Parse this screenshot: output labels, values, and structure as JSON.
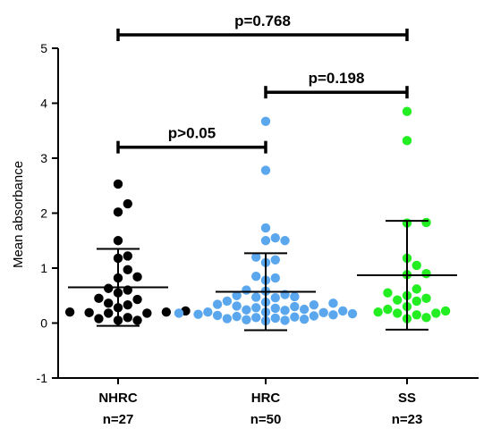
{
  "chart_data": {
    "type": "scatter",
    "title": "",
    "xlabel": "",
    "ylabel": "Mean absorbance",
    "ylim": [
      -1,
      5
    ],
    "yticks": [
      -1,
      0,
      1,
      2,
      3,
      4,
      5
    ],
    "grid": false,
    "categories": [
      {
        "name": "NHRC",
        "n_label": "n=27"
      },
      {
        "name": "HRC",
        "n_label": "n=50"
      },
      {
        "name": "SS",
        "n_label": "n=23"
      }
    ],
    "series": [
      {
        "category": "NHRC",
        "color": "#000000",
        "mean": 0.65,
        "sd_upper": 1.35,
        "sd_lower": -0.05,
        "values": [
          2.53,
          2.17,
          2.02,
          1.5,
          1.22,
          1.18,
          0.97,
          0.84,
          0.82,
          0.63,
          0.6,
          0.55,
          0.45,
          0.43,
          0.36,
          0.33,
          0.28,
          0.22,
          0.2,
          0.2,
          0.19,
          0.18,
          0.18,
          0.1,
          0.08,
          0.05,
          0.05
        ]
      },
      {
        "category": "HRC",
        "color": "#5aa7ee",
        "mean": 0.57,
        "sd_upper": 1.27,
        "sd_lower": -0.13,
        "values": [
          3.67,
          2.78,
          1.73,
          1.55,
          1.5,
          1.5,
          1.2,
          1.15,
          1.1,
          0.85,
          0.82,
          0.78,
          0.6,
          0.58,
          0.52,
          0.5,
          0.48,
          0.47,
          0.46,
          0.4,
          0.38,
          0.36,
          0.34,
          0.33,
          0.31,
          0.3,
          0.28,
          0.27,
          0.25,
          0.24,
          0.23,
          0.22,
          0.2,
          0.2,
          0.19,
          0.18,
          0.17,
          0.16,
          0.15,
          0.14,
          0.13,
          0.12,
          0.11,
          0.1,
          0.09,
          0.08,
          0.07,
          0.06,
          0.05,
          0.04
        ]
      },
      {
        "category": "SS",
        "color": "#22ee22",
        "mean": 0.87,
        "sd_upper": 1.86,
        "sd_lower": -0.12,
        "values": [
          3.85,
          3.32,
          1.83,
          1.82,
          1.18,
          1.05,
          0.9,
          0.88,
          0.62,
          0.55,
          0.5,
          0.45,
          0.42,
          0.4,
          0.3,
          0.25,
          0.22,
          0.2,
          0.18,
          0.18,
          0.15,
          0.1,
          0.08
        ]
      }
    ],
    "comparisons": [
      {
        "from": "NHRC",
        "to": "HRC",
        "y": 3.2,
        "label": "p>0.05"
      },
      {
        "from": "HRC",
        "to": "SS",
        "y": 4.2,
        "label": "p=0.198"
      },
      {
        "from": "NHRC",
        "to": "SS",
        "y": 5.0,
        "label": "p=0.768"
      }
    ]
  }
}
